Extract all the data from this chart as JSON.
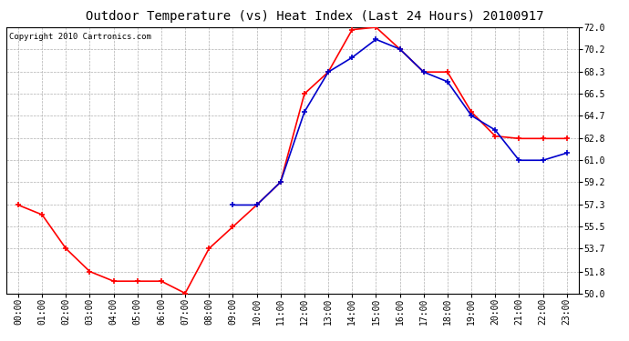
{
  "title": "Outdoor Temperature (vs) Heat Index (Last 24 Hours) 20100917",
  "copyright": "Copyright 2010 Cartronics.com",
  "hours": [
    "00:00",
    "01:00",
    "02:00",
    "03:00",
    "04:00",
    "05:00",
    "06:00",
    "07:00",
    "08:00",
    "09:00",
    "10:00",
    "11:00",
    "12:00",
    "13:00",
    "14:00",
    "15:00",
    "16:00",
    "17:00",
    "18:00",
    "19:00",
    "20:00",
    "21:00",
    "22:00",
    "23:00"
  ],
  "red_temp": [
    57.3,
    56.5,
    53.7,
    51.8,
    51.0,
    51.0,
    51.0,
    50.0,
    53.7,
    55.5,
    57.3,
    59.2,
    66.5,
    68.3,
    71.8,
    72.0,
    70.2,
    68.3,
    68.3,
    65.0,
    63.0,
    62.8,
    62.8,
    62.8
  ],
  "blue_temp": [
    null,
    null,
    null,
    null,
    null,
    null,
    null,
    null,
    null,
    57.3,
    57.3,
    59.2,
    65.0,
    68.3,
    69.5,
    71.0,
    70.2,
    68.3,
    67.5,
    64.7,
    63.5,
    61.0,
    61.0,
    61.6
  ],
  "red_color": "#ff0000",
  "blue_color": "#0000cc",
  "bg_color": "#ffffff",
  "plot_bg_color": "#ffffff",
  "grid_color": "#b0b0b0",
  "ylim": [
    50.0,
    72.0
  ],
  "yticks": [
    50.0,
    51.8,
    53.7,
    55.5,
    57.3,
    59.2,
    61.0,
    62.8,
    64.7,
    66.5,
    68.3,
    70.2,
    72.0
  ],
  "title_fontsize": 10,
  "copyright_fontsize": 6.5,
  "tick_fontsize": 7,
  "marker_size": 4,
  "linewidth": 1.2
}
